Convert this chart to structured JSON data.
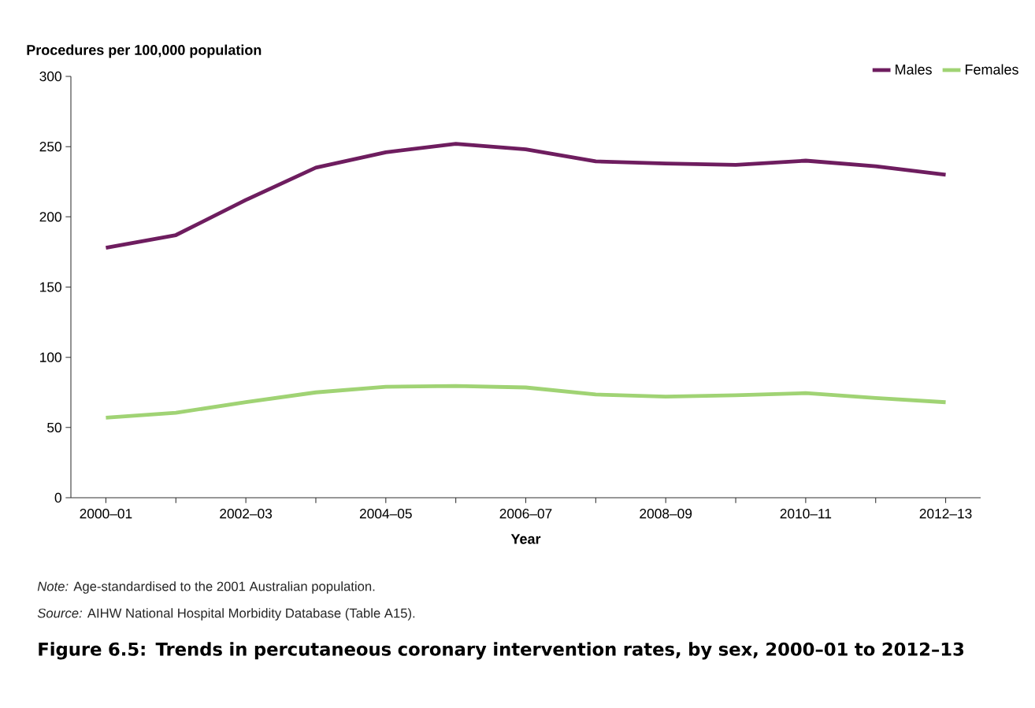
{
  "chart_data": {
    "type": "line",
    "title": "Figure 6.5: Trends in percutaneous coronary intervention rates, by sex, 2000–01 to 2012–13",
    "ylabel": "Procedures per 100,000 population",
    "xlabel": "Year",
    "annotations": [
      "*Note:* Age-standardised to the 2001 Australian population.",
      "*Source:* AIHW National Hospital Morbidity Database (Table A15)."
    ],
    "categories": [
      "2000–01",
      null,
      "2002–03",
      null,
      "2004–05",
      null,
      "2006–07",
      null,
      "2008–09",
      null,
      "2010–11",
      null,
      "2012–13"
    ],
    "series": [
      {
        "name": "Males",
        "color": "#6e1d5f",
        "values": [
          178,
          187,
          212,
          235,
          246,
          252,
          248,
          239.5,
          238,
          237,
          240,
          236,
          230
        ]
      },
      {
        "name": "Females",
        "color": "#a0d374",
        "values": [
          57,
          60.5,
          68,
          75,
          79,
          79.5,
          78.5,
          73.5,
          72,
          73,
          74.5,
          71,
          68
        ]
      }
    ],
    "ylim": [
      0,
      300
    ],
    "yticks": [
      0,
      50,
      100,
      150,
      200,
      250,
      300
    ],
    "grid": false,
    "legend": "top right",
    "marker": "none",
    "line_style": "solid"
  }
}
